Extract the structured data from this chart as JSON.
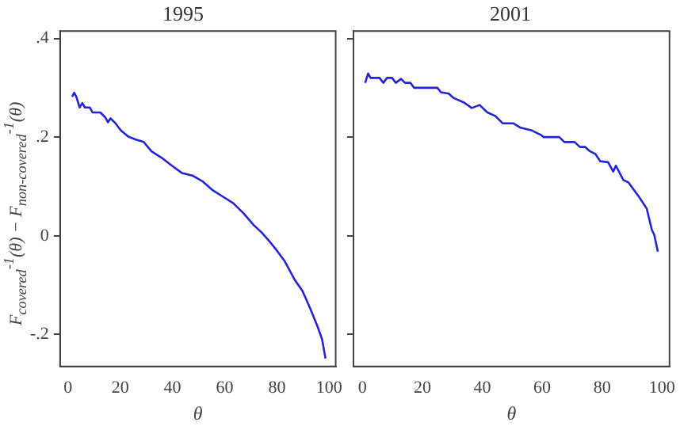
{
  "chart_data": [
    {
      "type": "line",
      "title": "1995",
      "xlabel": "θ",
      "ylabel": "F$_{covered}$$^{-1}$(θ) − F$_{non-covered}$$^{-1}$(θ)",
      "xlim": [
        -3,
        102.5
      ],
      "ylim": [
        -0.265,
        0.415
      ],
      "xticks": [
        0,
        20,
        40,
        60,
        80,
        100
      ],
      "yticks": [
        {
          "value": 0.4,
          "label": ".4"
        },
        {
          "value": 0.2,
          "label": ".2"
        },
        {
          "value": 0,
          "label": "0"
        },
        {
          "value": -0.2,
          "label": "-.2"
        }
      ],
      "grid": false,
      "legend": false,
      "marker": "none",
      "line_style": "solid",
      "series": [
        {
          "color": "#2323d8",
          "x": [
            1.6,
            2.4,
            3.2,
            4.5,
            5.5,
            6.5,
            8.4,
            9.4,
            12.4,
            14.3,
            15.3,
            16.3,
            18.2,
            20.2,
            23.1,
            26,
            29,
            32,
            35.9,
            39.8,
            43.7,
            47.6,
            51.6,
            55.5,
            59.4,
            63.3,
            67.3,
            71.2,
            74.1,
            77.1,
            80,
            82.9,
            86.9,
            89.8,
            92.7,
            95.7,
            97.3,
            98.6
          ],
          "values": [
            0.282,
            0.29,
            0.282,
            0.26,
            0.269,
            0.26,
            0.26,
            0.25,
            0.25,
            0.24,
            0.23,
            0.238,
            0.228,
            0.214,
            0.201,
            0.195,
            0.19,
            0.171,
            0.158,
            0.142,
            0.127,
            0.122,
            0.11,
            0.092,
            0.079,
            0.066,
            0.045,
            0.021,
            0.007,
            -0.011,
            -0.03,
            -0.051,
            -0.09,
            -0.112,
            -0.147,
            -0.186,
            -0.21,
            -0.249
          ]
        }
      ]
    },
    {
      "type": "line",
      "title": "2001",
      "xlabel": "θ",
      "xlim": [
        -3,
        102.5
      ],
      "ylim": [
        -0.265,
        0.415
      ],
      "xticks": [
        0,
        20,
        40,
        60,
        80,
        100
      ],
      "yticks": [
        {
          "value": 0.4,
          "label": null
        },
        {
          "value": 0.2,
          "label": null
        },
        {
          "value": 0,
          "label": null
        },
        {
          "value": -0.2,
          "label": null
        }
      ],
      "tick_labels": "x",
      "grid": false,
      "legend": false,
      "marker": "none",
      "line_style": "solid",
      "series": [
        {
          "color": "#2323d8",
          "x": [
            0.9,
            1.9,
            2.7,
            5.7,
            7,
            8.2,
            9.9,
            11.1,
            12.9,
            14.2,
            16,
            17.2,
            25,
            26.2,
            28.8,
            30.5,
            33.9,
            36.5,
            39.1,
            41.7,
            44.3,
            46.8,
            50.3,
            52.8,
            56.3,
            59.7,
            60.5,
            65.7,
            67.4,
            70.8,
            72.6,
            74.3,
            76,
            77.7,
            79.4,
            82,
            83.7,
            84.6,
            87.1,
            88.8,
            92.3,
            94.9,
            96.6,
            97.4,
            98.6
          ],
          "values": [
            0.31,
            0.329,
            0.32,
            0.32,
            0.31,
            0.32,
            0.32,
            0.31,
            0.318,
            0.31,
            0.31,
            0.3,
            0.3,
            0.291,
            0.288,
            0.279,
            0.27,
            0.259,
            0.265,
            0.25,
            0.243,
            0.228,
            0.228,
            0.219,
            0.214,
            0.204,
            0.2,
            0.2,
            0.19,
            0.19,
            0.18,
            0.18,
            0.171,
            0.166,
            0.151,
            0.149,
            0.13,
            0.142,
            0.113,
            0.108,
            0.079,
            0.055,
            0.012,
            0.002,
            -0.032
          ]
        }
      ]
    }
  ]
}
